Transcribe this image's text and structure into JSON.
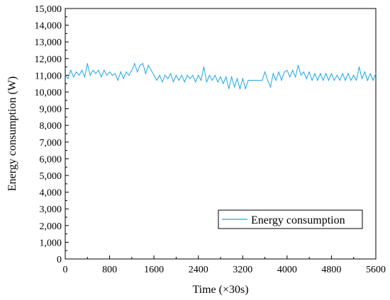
{
  "chart_data": {
    "type": "line",
    "title": "",
    "xlabel": "Time (×30s)",
    "ylabel": "Energy consumption (W)",
    "xlim": [
      0,
      5600
    ],
    "ylim": [
      0,
      15000
    ],
    "x_ticks": [
      "0",
      "800",
      "1600",
      "2400",
      "3200",
      "4000",
      "4800",
      "5600"
    ],
    "y_ticks": [
      "0",
      "1,000",
      "2,000",
      "3,000",
      "4,000",
      "5,000",
      "6,000",
      "7,000",
      "8,000",
      "9,000",
      "10,000",
      "11,000",
      "12,000",
      "13,000",
      "14,000",
      "15,000"
    ],
    "grid": false,
    "legend_position": "bottom-right",
    "series": [
      {
        "name": "Energy consumption",
        "color": "#1ea7e8",
        "x": [
          0,
          50,
          100,
          150,
          200,
          250,
          300,
          350,
          400,
          450,
          500,
          550,
          600,
          650,
          700,
          750,
          800,
          850,
          900,
          950,
          1000,
          1050,
          1100,
          1150,
          1200,
          1250,
          1300,
          1350,
          1400,
          1450,
          1500,
          1550,
          1600,
          1650,
          1700,
          1750,
          1800,
          1850,
          1900,
          1950,
          2000,
          2050,
          2100,
          2150,
          2200,
          2250,
          2300,
          2350,
          2400,
          2450,
          2500,
          2550,
          2600,
          2650,
          2700,
          2750,
          2800,
          2850,
          2900,
          2950,
          3000,
          3050,
          3100,
          3150,
          3200,
          3250,
          3300,
          3350,
          3400,
          3450,
          3500,
          3550,
          3600,
          3650,
          3700,
          3750,
          3800,
          3850,
          3900,
          3950,
          4000,
          4050,
          4100,
          4150,
          4200,
          4250,
          4300,
          4350,
          4400,
          4450,
          4500,
          4550,
          4600,
          4650,
          4700,
          4750,
          4800,
          4850,
          4900,
          4950,
          5000,
          5050,
          5100,
          5150,
          5200,
          5250,
          5300,
          5350,
          5400,
          5450,
          5500,
          5550,
          5600
        ],
        "y": [
          11000,
          10800,
          11300,
          10900,
          11200,
          11000,
          11300,
          10900,
          11700,
          11000,
          11300,
          11100,
          11300,
          10900,
          11300,
          11000,
          11200,
          11000,
          11100,
          10700,
          11200,
          10800,
          11200,
          11000,
          11300,
          11700,
          11200,
          11600,
          11700,
          11100,
          11600,
          11300,
          11000,
          10700,
          11000,
          10600,
          11000,
          10800,
          11100,
          10600,
          11000,
          10700,
          11000,
          10600,
          11000,
          10800,
          11000,
          10600,
          11000,
          10700,
          11500,
          10600,
          11000,
          10700,
          11000,
          10600,
          10900,
          10500,
          10900,
          10200,
          10900,
          10300,
          10800,
          10200,
          10800,
          10200,
          10700,
          10700,
          10700,
          10700,
          10700,
          10700,
          11200,
          10700,
          10300,
          11100,
          10700,
          11200,
          10700,
          11200,
          11300,
          10900,
          11300,
          10900,
          11600,
          11000,
          11200,
          10800,
          11200,
          10700,
          11100,
          10700,
          11100,
          10700,
          11100,
          10700,
          11100,
          10700,
          11000,
          10700,
          11100,
          10700,
          11100,
          10700,
          11000,
          10700,
          11500,
          10800,
          11200,
          10700,
          11100,
          10700,
          11100
        ]
      }
    ]
  }
}
